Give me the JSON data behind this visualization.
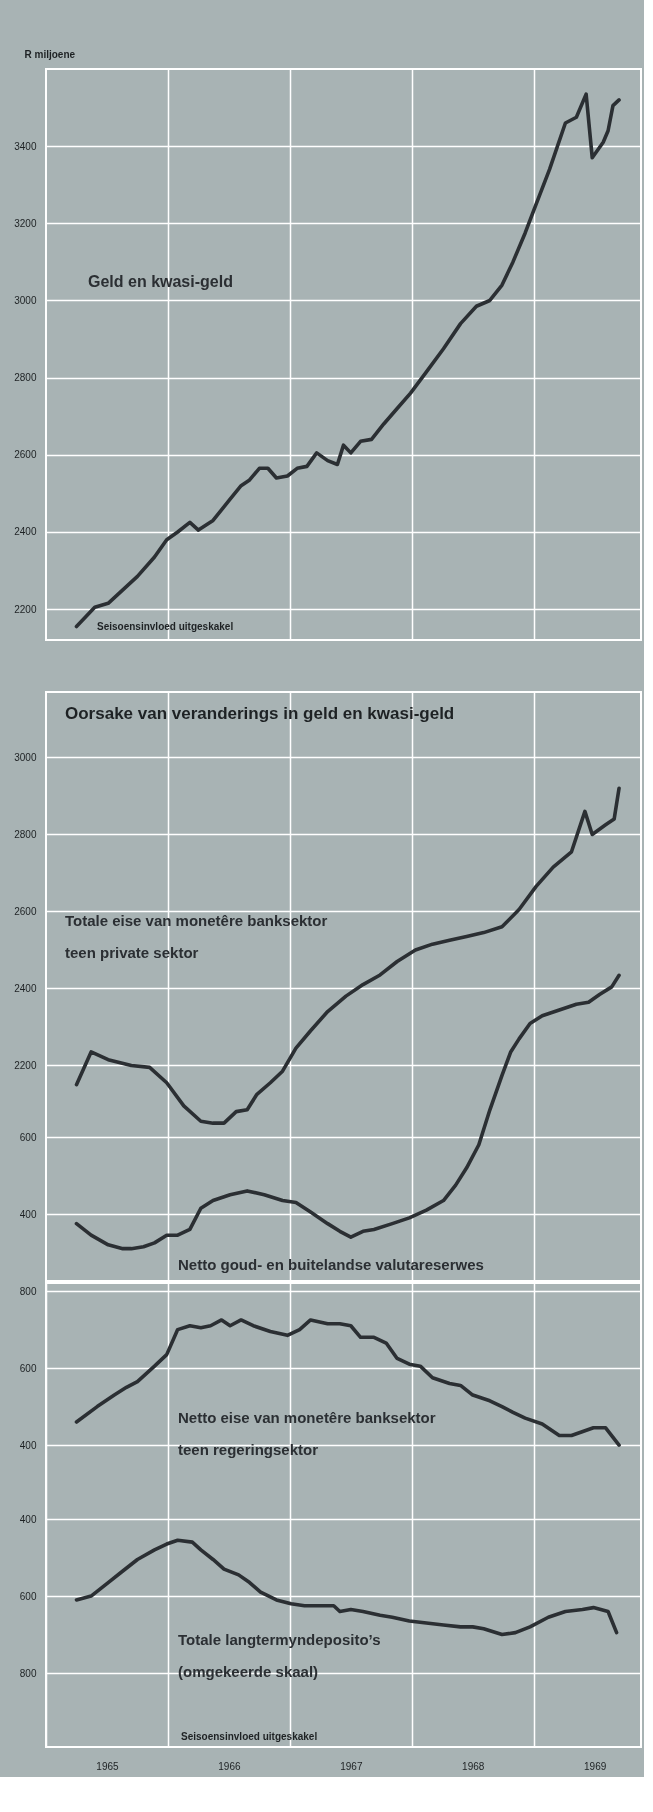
{
  "chart_data": [
    {
      "type": "line",
      "ylabel": "R miljoene",
      "xlim": [
        1965,
        1969.88
      ],
      "ylim": [
        2120,
        3600
      ],
      "xticks": [
        1966,
        1967,
        1968,
        1969
      ],
      "yticks": [
        2200,
        2400,
        2600,
        2800,
        3000,
        3200,
        3400
      ],
      "grid": true,
      "tick_labels": "y",
      "annotations": [
        "Seisoensinvloed uitgeskakel"
      ],
      "series": [
        {
          "name": "Geld en kwasi-geld",
          "color": "#2b2f33",
          "x": [
            1965.25,
            1965.4,
            1965.51,
            1965.63,
            1965.75,
            1965.89,
            1965.99,
            1966.08,
            1966.18,
            1966.25,
            1966.37,
            1966.51,
            1966.6,
            1966.67,
            1966.75,
            1966.82,
            1966.89,
            1966.98,
            1967.06,
            1967.14,
            1967.22,
            1967.31,
            1967.39,
            1967.44,
            1967.5,
            1967.58,
            1967.67,
            1967.77,
            1967.88,
            1967.99,
            1968.12,
            1968.26,
            1968.4,
            1968.53,
            1968.64,
            1968.74,
            1968.83,
            1968.93,
            1969.02,
            1969.13,
            1969.26,
            1969.35,
            1969.43,
            1969.48,
            1969.57,
            1969.61,
            1969.65,
            1969.7
          ],
          "values": [
            2155,
            2205,
            2215,
            2250,
            2285,
            2335,
            2380,
            2400,
            2425,
            2405,
            2430,
            2485,
            2520,
            2535,
            2565,
            2565,
            2540,
            2545,
            2565,
            2570,
            2605,
            2585,
            2575,
            2625,
            2605,
            2635,
            2640,
            2680,
            2720,
            2760,
            2815,
            2875,
            2940,
            2985,
            3000,
            3040,
            3100,
            3175,
            3250,
            3340,
            3460,
            3475,
            3535,
            3370,
            3410,
            3440,
            3505,
            3520
          ]
        }
      ]
    },
    {
      "type": "line",
      "title": "Oorsake van veranderings in geld en kwasi-geld",
      "xlim": [
        1965,
        1969.88
      ],
      "xticks": [
        1966,
        1967,
        1968,
        1969
      ],
      "ylim": [
        1640,
        3170
      ],
      "yticks": [
        2200,
        2400,
        2600,
        2800,
        3000
      ],
      "y2lim": [
        226,
        1756
      ],
      "y2ticks": [
        400,
        600
      ],
      "grid": true,
      "tick_labels": "y",
      "series": [
        {
          "name": "Totale eise van monetêre banksektor\n teen private sektor",
          "color": "#2b2f33",
          "axis": "y",
          "x": [
            1965.25,
            1965.37,
            1965.51,
            1965.7,
            1965.85,
            1965.99,
            1966.13,
            1966.27,
            1966.37,
            1966.46,
            1966.56,
            1966.65,
            1966.73,
            1966.84,
            1966.94,
            1967.05,
            1967.17,
            1967.31,
            1967.46,
            1967.6,
            1967.74,
            1967.88,
            1968.03,
            1968.17,
            1968.31,
            1968.45,
            1968.59,
            1968.74,
            1968.88,
            1969.02,
            1969.16,
            1969.31,
            1969.42,
            1969.48,
            1969.59,
            1969.66,
            1969.7
          ],
          "values": [
            2150,
            2235,
            2215,
            2200,
            2195,
            2155,
            2095,
            2055,
            2050,
            2050,
            2080,
            2085,
            2125,
            2155,
            2185,
            2245,
            2290,
            2340,
            2380,
            2410,
            2435,
            2470,
            2500,
            2515,
            2525,
            2535,
            2545,
            2560,
            2605,
            2665,
            2715,
            2755,
            2860,
            2800,
            2825,
            2840,
            2920
          ]
        },
        {
          "name": "Netto goud- en buitelandse valutareserwes",
          "color": "#2b2f33",
          "axis": "y2",
          "x": [
            1965.25,
            1965.37,
            1965.51,
            1965.63,
            1965.7,
            1965.8,
            1965.89,
            1965.99,
            1966.08,
            1966.18,
            1966.27,
            1966.37,
            1966.51,
            1966.65,
            1966.79,
            1966.94,
            1967.05,
            1967.17,
            1967.31,
            1967.41,
            1967.5,
            1967.6,
            1967.69,
            1967.84,
            1967.98,
            1968.12,
            1968.26,
            1968.36,
            1968.45,
            1968.55,
            1968.64,
            1968.74,
            1968.81,
            1968.88,
            1968.97,
            1969.07,
            1969.21,
            1969.35,
            1969.45,
            1969.54,
            1969.64,
            1969.7
          ],
          "values": [
            375,
            345,
            320,
            310,
            310,
            315,
            325,
            345,
            345,
            360,
            415,
            435,
            450,
            460,
            450,
            435,
            430,
            405,
            375,
            355,
            340,
            355,
            360,
            375,
            390,
            410,
            435,
            475,
            520,
            580,
            670,
            760,
            820,
            855,
            895,
            915,
            930,
            945,
            950,
            970,
            990,
            1020
          ]
        }
      ]
    },
    {
      "type": "line",
      "xlim": [
        1965,
        1969.88
      ],
      "xticks": [
        {
          "value": 1965,
          "label": null
        },
        {
          "value": 1965.5,
          "label": "1965"
        },
        {
          "value": 1966,
          "label": null
        },
        {
          "value": 1966.5,
          "label": "1966"
        },
        {
          "value": 1967,
          "label": null
        },
        {
          "value": 1967.5,
          "label": "1967"
        },
        {
          "value": 1968,
          "label": null
        },
        {
          "value": 1968.5,
          "label": "1968"
        },
        {
          "value": 1969,
          "label": null
        },
        {
          "value": 1969.5,
          "label": "1969"
        }
      ],
      "ylim": [
        -384,
        821
      ],
      "yticks": [
        400,
        600,
        800
      ],
      "y2lim": [
        992,
        -213
      ],
      "y2ticks": [
        400,
        600,
        800
      ],
      "grid": true,
      "annotations": [
        "Seisoensinvloed uitgeskakel"
      ],
      "series": [
        {
          "name": "Netto eise van monetêre banksektor\nteen regeringsektor",
          "color": "#2b2f33",
          "axis": "y",
          "x": [
            1965.25,
            1965.42,
            1965.56,
            1965.66,
            1965.75,
            1965.89,
            1965.99,
            1966.08,
            1966.18,
            1966.27,
            1966.35,
            1966.44,
            1966.51,
            1966.6,
            1966.7,
            1966.84,
            1966.98,
            1967.08,
            1967.17,
            1967.31,
            1967.41,
            1967.5,
            1967.58,
            1967.69,
            1967.79,
            1967.88,
            1967.98,
            1968.07,
            1968.17,
            1968.31,
            1968.4,
            1968.5,
            1968.64,
            1968.74,
            1968.83,
            1968.93,
            1969.07,
            1969.21,
            1969.31,
            1969.49,
            1969.59,
            1969.7
          ],
          "values": [
            460,
            500,
            530,
            550,
            565,
            605,
            635,
            700,
            710,
            705,
            710,
            725,
            710,
            725,
            710,
            695,
            685,
            700,
            725,
            715,
            715,
            710,
            680,
            680,
            665,
            625,
            610,
            605,
            575,
            560,
            555,
            530,
            515,
            500,
            485,
            470,
            455,
            425,
            425,
            445,
            445,
            400
          ]
        },
        {
          "name": "Totale langtermyndeposito’s\n(omgekeerde skaal)",
          "color": "#2b2f33",
          "axis": "y2",
          "x": [
            1965.25,
            1965.37,
            1965.51,
            1965.63,
            1965.75,
            1965.89,
            1965.99,
            1966.08,
            1966.2,
            1966.27,
            1966.37,
            1966.46,
            1966.58,
            1966.67,
            1966.76,
            1966.89,
            1967.01,
            1967.12,
            1967.27,
            1967.36,
            1967.41,
            1967.5,
            1967.6,
            1967.74,
            1967.84,
            1967.98,
            1968.12,
            1968.26,
            1968.4,
            1968.5,
            1968.59,
            1968.74,
            1968.85,
            1968.97,
            1969.12,
            1969.26,
            1969.4,
            1969.49,
            1969.61,
            1969.68
          ],
          "values": [
            610,
            600,
            565,
            535,
            505,
            480,
            465,
            455,
            460,
            480,
            505,
            530,
            545,
            565,
            590,
            610,
            620,
            625,
            625,
            625,
            640,
            635,
            640,
            650,
            655,
            665,
            670,
            675,
            680,
            680,
            685,
            700,
            695,
            680,
            655,
            640,
            635,
            630,
            640,
            695
          ]
        }
      ]
    }
  ]
}
